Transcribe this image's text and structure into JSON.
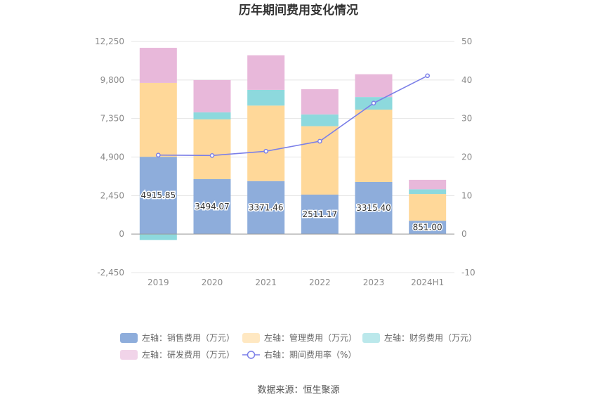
{
  "chart_data": {
    "type": "bar",
    "stacked": true,
    "title": "历年期间费用变化情况",
    "categories": [
      "2019",
      "2020",
      "2021",
      "2022",
      "2023",
      "2024H1"
    ],
    "y_left": {
      "ticks": [
        "12,250",
        "9,800",
        "7,350",
        "4,900",
        "2,450",
        "0",
        "-2,450"
      ],
      "min": -2450,
      "max": 12250
    },
    "y_right": {
      "ticks": [
        "50",
        "40",
        "30",
        "20",
        "10",
        "0",
        "-10"
      ],
      "min": -10,
      "max": 50
    },
    "grid": true,
    "legend_position": "bottom",
    "series": [
      {
        "name": "左轴：销售费用（万元）",
        "type": "bar",
        "axis": "left",
        "color": "#8eaddb",
        "values": [
          4915.85,
          3494.07,
          3371.46,
          2511.17,
          3315.4,
          851.0
        ],
        "labels": [
          "4915.85",
          "3494.07",
          "3371.46",
          "2511.17",
          "3315.40",
          "851.00"
        ]
      },
      {
        "name": "左轴：管理费用（万元）",
        "type": "bar",
        "axis": "left",
        "color": "#ffd899",
        "values": [
          4700,
          3800,
          4800,
          4350,
          4600,
          1700
        ]
      },
      {
        "name": "左轴：财务费用（万元）",
        "type": "bar",
        "axis": "left",
        "color": "#8dd9dd",
        "values": [
          -380,
          450,
          1000,
          750,
          800,
          300
        ]
      },
      {
        "name": "左轴：研发费用（万元）",
        "type": "bar",
        "axis": "left",
        "color": "#e8b8da",
        "values": [
          2230,
          2050,
          2200,
          1600,
          1450,
          600
        ]
      },
      {
        "name": "右轴：期间费用率（%）",
        "type": "line",
        "axis": "right",
        "color": "#7b7fe8",
        "values": [
          20.5,
          20.4,
          21.5,
          24.1,
          34.0,
          41.1
        ]
      }
    ]
  },
  "source": "数据来源：恒生聚源"
}
